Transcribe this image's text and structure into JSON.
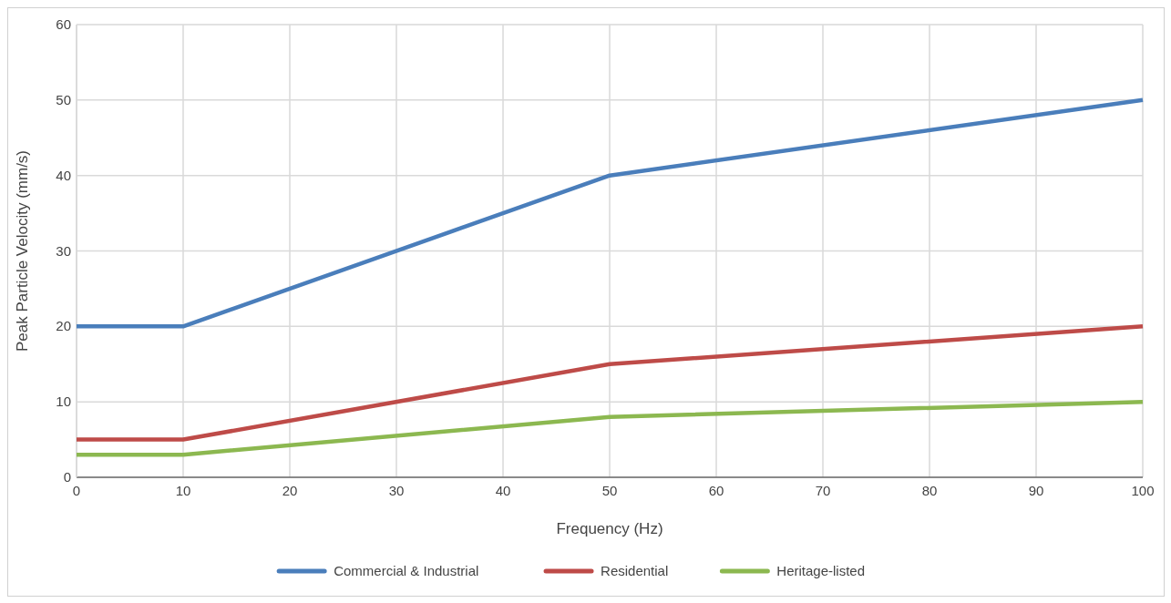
{
  "chart_data": {
    "type": "line",
    "xlabel": "Frequency (Hz)",
    "ylabel": "Peak Particle Velocity (mm/s)",
    "xlim": [
      0,
      100
    ],
    "xticks": [
      0,
      10,
      20,
      30,
      40,
      50,
      60,
      70,
      80,
      90,
      100
    ],
    "ylim": [
      0,
      60
    ],
    "yticks": [
      0,
      10,
      20,
      30,
      40,
      50,
      60
    ],
    "grid": true,
    "legend": "bottom",
    "marker": "none",
    "line_style": "solid",
    "series": [
      {
        "name": "Commercial & Industrial",
        "color": "#4a7ebb",
        "x": [
          0,
          10,
          50,
          100
        ],
        "values": [
          20,
          20,
          40,
          50
        ]
      },
      {
        "name": "Residential",
        "color": "#be4b48",
        "x": [
          0,
          10,
          50,
          100
        ],
        "values": [
          5,
          5,
          15,
          20
        ]
      },
      {
        "name": "Heritage-listed",
        "color": "#8cb850",
        "x": [
          0,
          10,
          50,
          100
        ],
        "values": [
          3,
          3,
          8,
          10
        ]
      }
    ]
  }
}
